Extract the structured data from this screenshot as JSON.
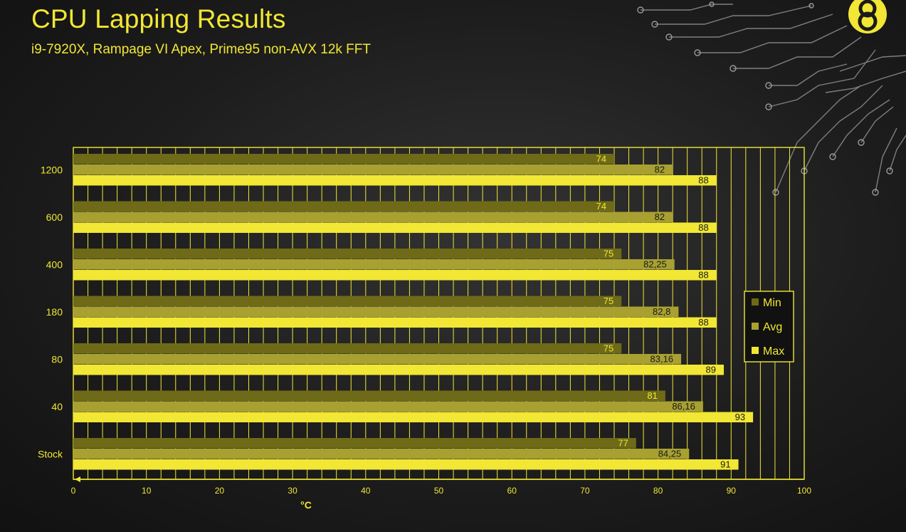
{
  "page": {
    "title": "CPU Lapping Results",
    "subtitle": "i9-7920X, Rampage VI Apex, Prime95 non-AVX 12k FFT"
  },
  "colors": {
    "accent": "#f1e734",
    "grid": "#f1e734",
    "background": "#1d1d1d"
  },
  "chart_data": {
    "type": "bar",
    "orientation": "horizontal",
    "title": "CPU Lapping Results",
    "subtitle": "i9-7920X, Rampage VI Apex, Prime95 non-AVX 12k FFT",
    "xlabel": "°C",
    "ylabel": "",
    "xlim": [
      0,
      100
    ],
    "x_ticks": [
      "0",
      "10",
      "20",
      "30",
      "40",
      "50",
      "60",
      "70",
      "80",
      "90",
      "100"
    ],
    "categories": [
      "1200",
      "600",
      "400",
      "180",
      "80",
      "40",
      "Stock"
    ],
    "series": [
      {
        "name": "Min",
        "color": "#6e6a18",
        "values": [
          74,
          74,
          75,
          75,
          75,
          81,
          77
        ],
        "labels": [
          "74",
          "74",
          "75",
          "75",
          "75",
          "81",
          "77"
        ]
      },
      {
        "name": "Avg",
        "color": "#a8a132",
        "values": [
          82,
          82,
          82.25,
          82.8,
          83.16,
          86.16,
          84.25
        ],
        "labels": [
          "82",
          "82",
          "82,25",
          "82,8",
          "83,16",
          "86,16",
          "84,25"
        ]
      },
      {
        "name": "Max",
        "color": "#f1e734",
        "values": [
          88,
          88,
          88,
          88,
          89,
          93,
          91
        ],
        "labels": [
          "88",
          "88",
          "88",
          "88",
          "89",
          "93",
          "91"
        ]
      }
    ],
    "grid": true,
    "legend_position": "right"
  }
}
